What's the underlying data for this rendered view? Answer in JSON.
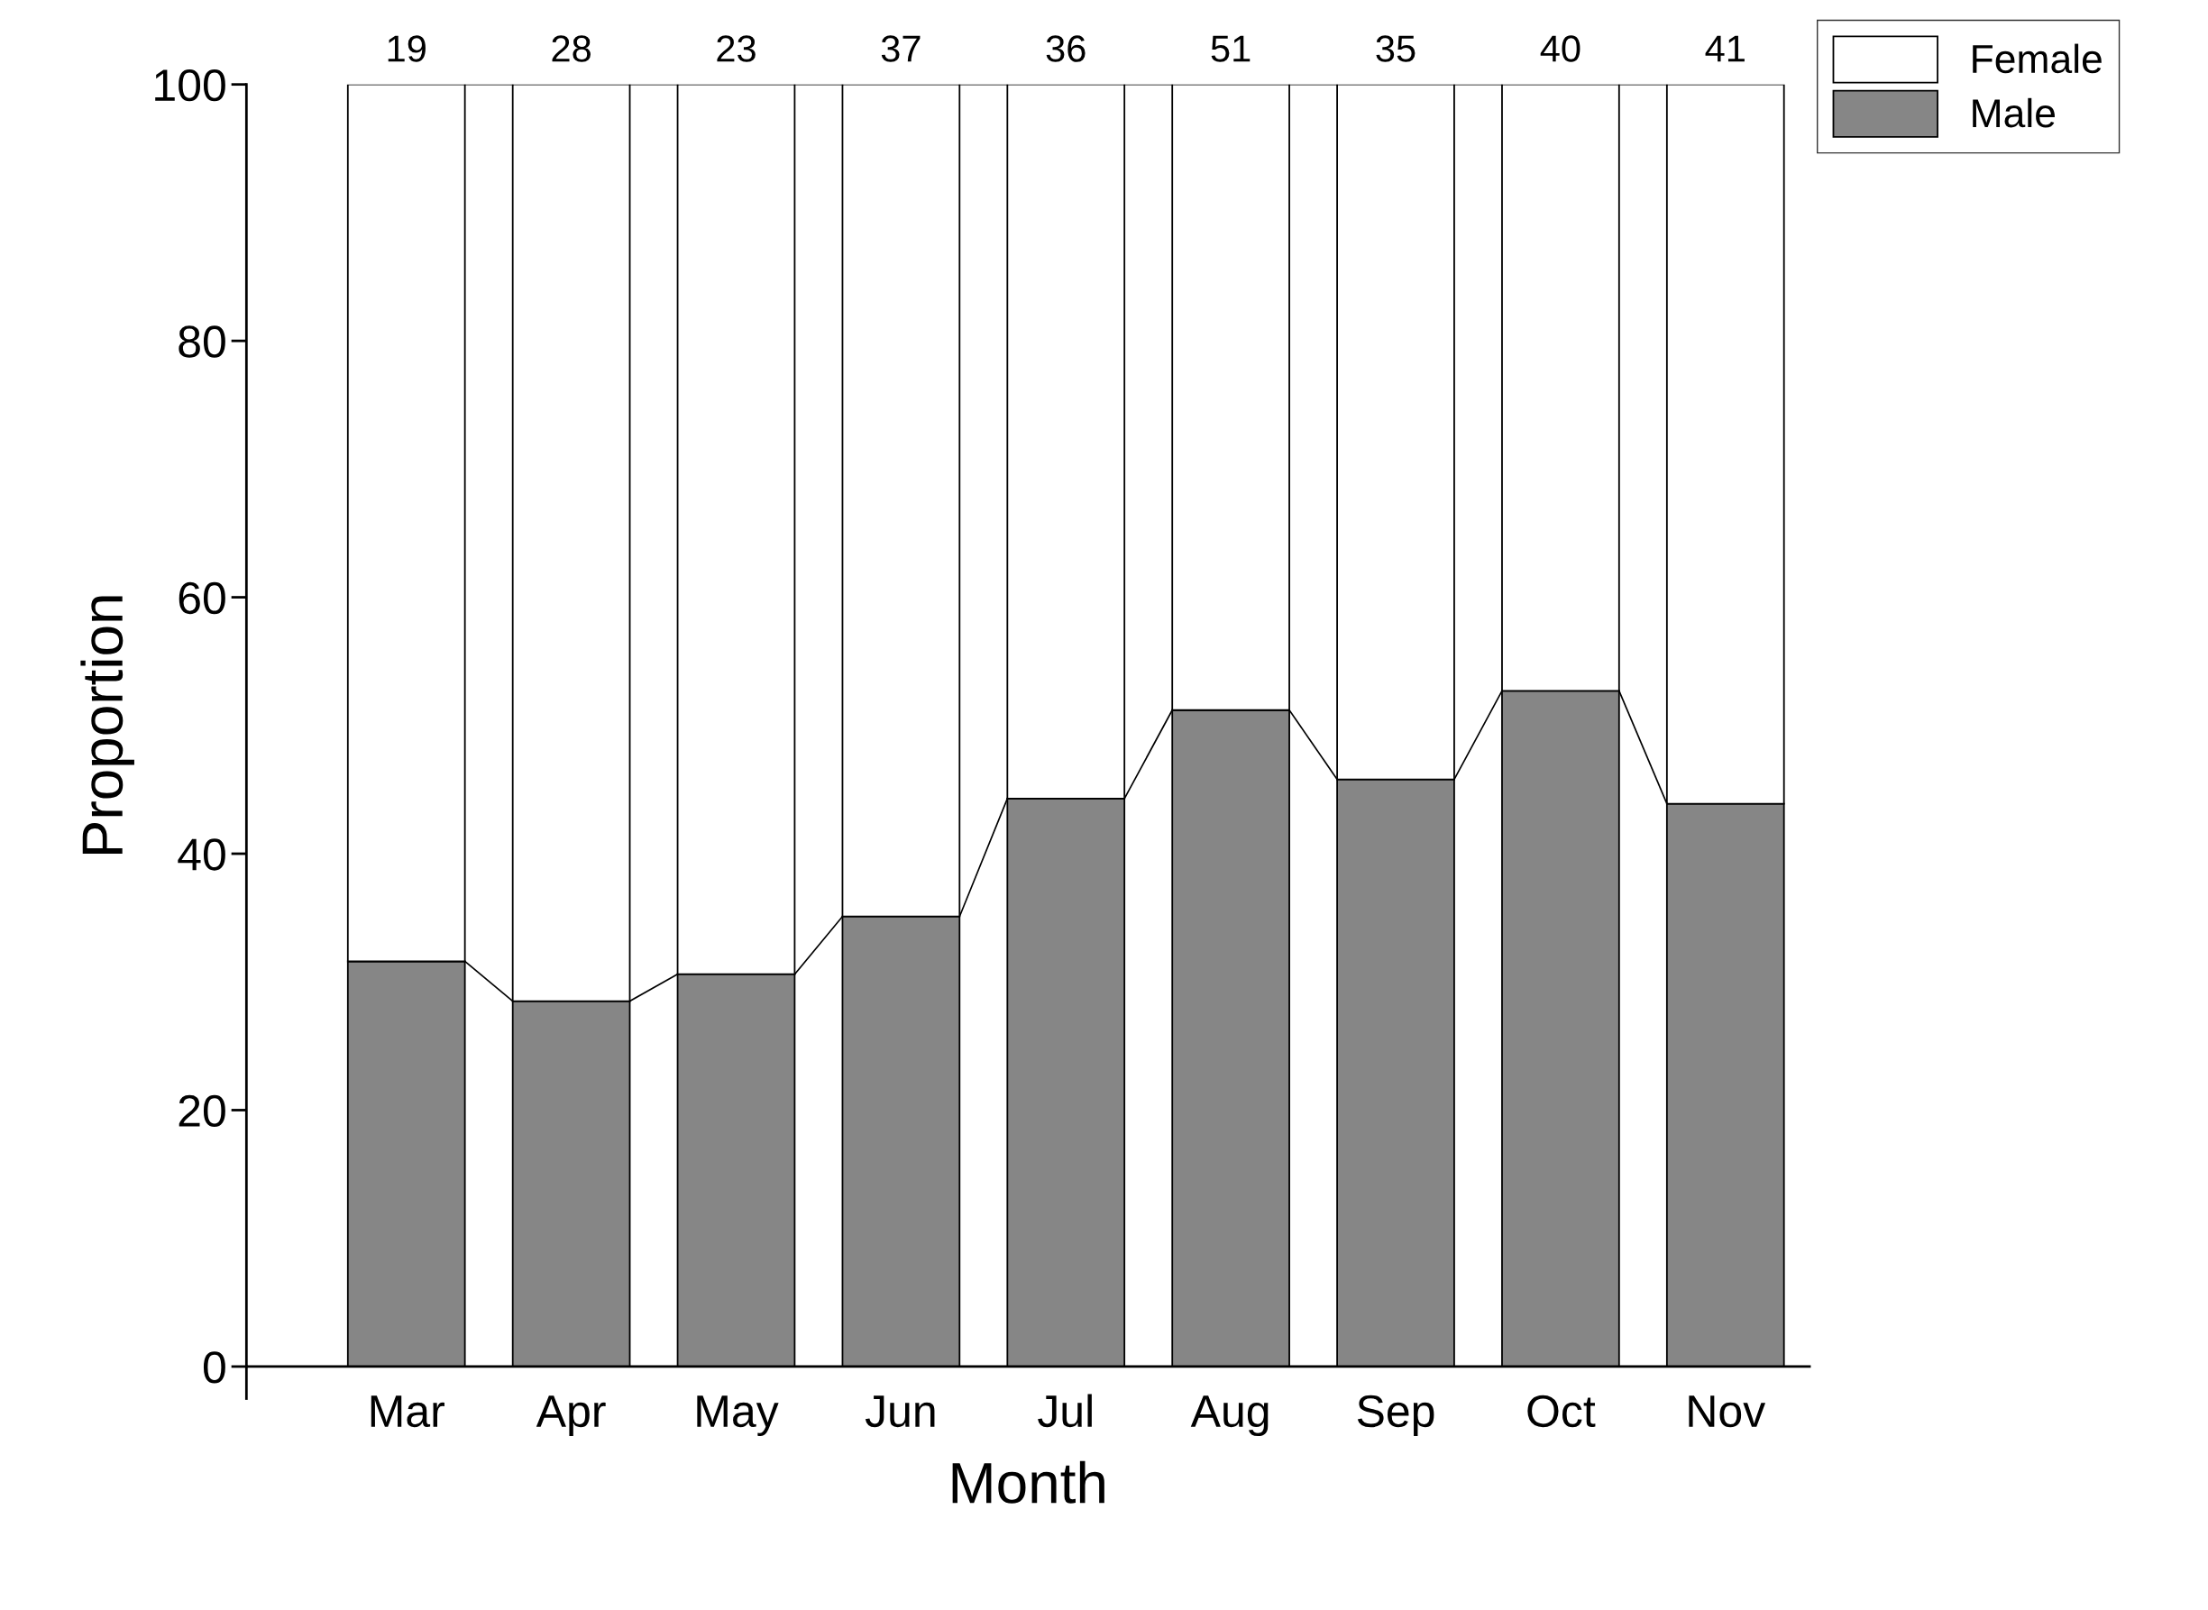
{
  "chart_data": {
    "type": "bar",
    "stacked": true,
    "xlabel": "Month",
    "ylabel": "Proportion",
    "categories": [
      "Mar",
      "Apr",
      "May",
      "Jun",
      "Jul",
      "Aug",
      "Sep",
      "Oct",
      "Nov"
    ],
    "series": [
      {
        "name": "Male",
        "color": "#868686",
        "values": [
          31.6,
          28.5,
          30.6,
          35.1,
          44.3,
          51.2,
          45.8,
          52.7,
          43.9
        ]
      },
      {
        "name": "Female",
        "color": "#ffffff",
        "values": [
          68.4,
          71.5,
          69.4,
          64.9,
          55.7,
          48.8,
          54.2,
          47.3,
          56.1
        ]
      }
    ],
    "ylim": [
      0,
      100
    ],
    "yticks": [
      0,
      20,
      40,
      60,
      80,
      100
    ],
    "annotations": [
      {
        "text": "19",
        "x": "Mar",
        "y": 100
      },
      {
        "text": "28",
        "x": "Apr",
        "y": 100
      },
      {
        "text": "23",
        "x": "May",
        "y": 100
      },
      {
        "text": "37",
        "x": "Jun",
        "y": 100
      },
      {
        "text": "36",
        "x": "Jul",
        "y": 100
      },
      {
        "text": "51",
        "x": "Aug",
        "y": 100
      },
      {
        "text": "35",
        "x": "Sep",
        "y": 100
      },
      {
        "text": "40",
        "x": "Oct",
        "y": 100
      },
      {
        "text": "41",
        "x": "Nov",
        "y": 100
      }
    ],
    "legend": "top right",
    "grid": false
  }
}
